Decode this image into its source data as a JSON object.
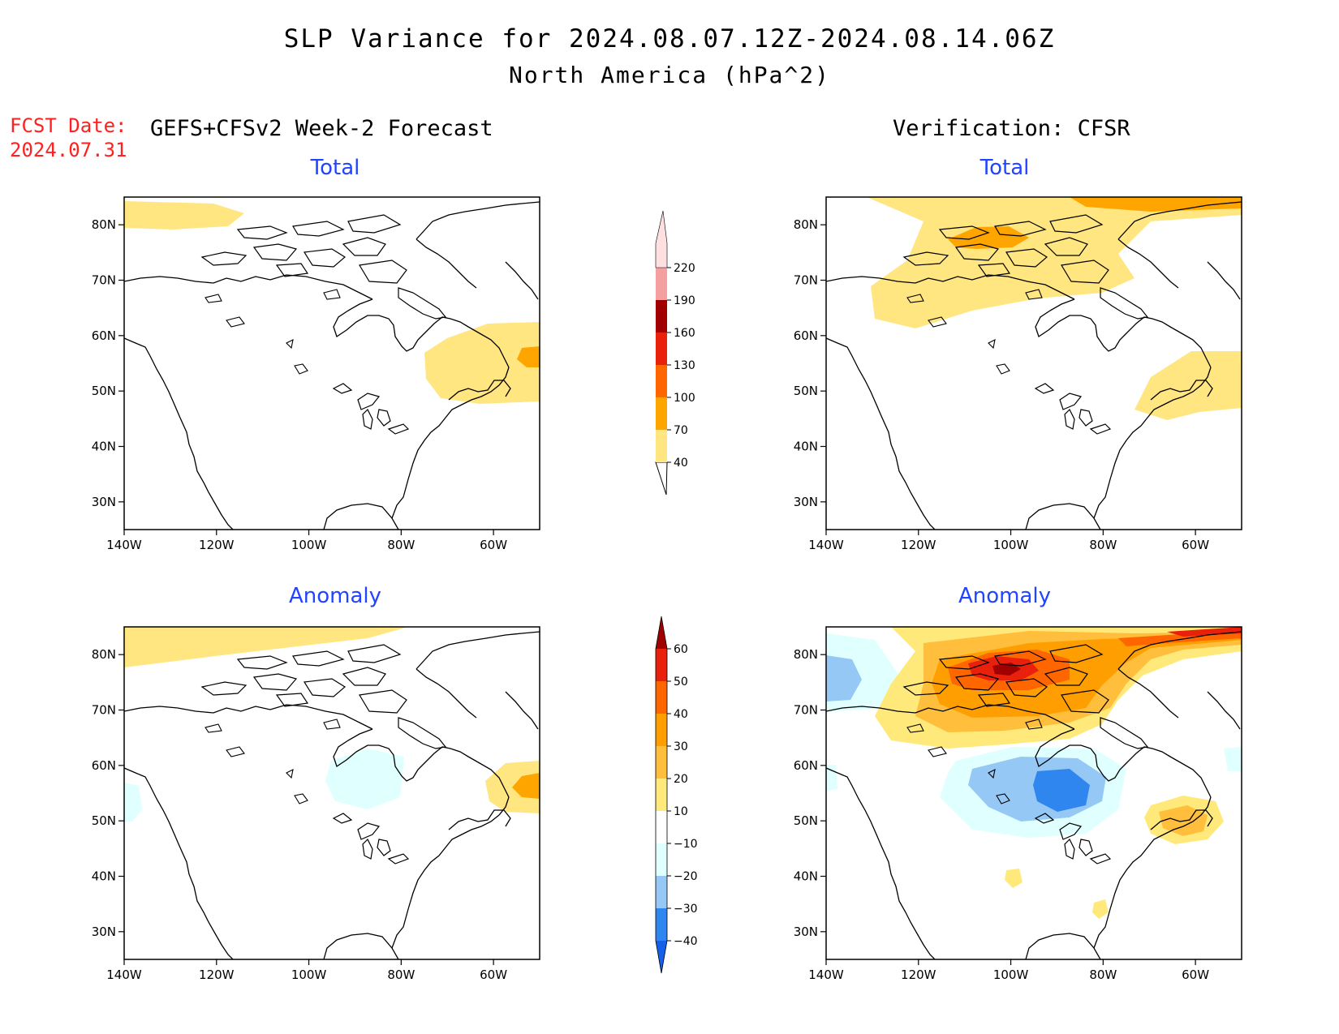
{
  "header": {
    "title": "SLP Variance for 2024.08.07.12Z-2024.08.14.06Z",
    "subtitle": "North America (hPa^2)",
    "fcst_date_label": "FCST Date:",
    "fcst_date": "2024.07.31",
    "model_label": "GEFS+CFSv2 Week-2 Forecast",
    "verification_label": "Verification: CFSR"
  },
  "panels": {
    "fcst_total": {
      "title": "Total"
    },
    "verif_total": {
      "title": "Total"
    },
    "fcst_anom": {
      "title": "Anomaly"
    },
    "verif_anom": {
      "title": "Anomaly"
    }
  },
  "axes": {
    "lat_ticks": [
      "80N",
      "70N",
      "60N",
      "50N",
      "40N",
      "30N"
    ],
    "lon_ticks": [
      "140W",
      "120W",
      "100W",
      "80W",
      "60W"
    ],
    "lon_range": [
      -140,
      -50
    ],
    "lat_range": [
      25,
      85
    ]
  },
  "colorbars": {
    "total": {
      "labels": [
        "40",
        "70",
        "100",
        "130",
        "160",
        "190",
        "220"
      ],
      "colors": [
        "#ffe680",
        "#ffa500",
        "#ff6600",
        "#e8200c",
        "#a00000",
        "#f4a0a0",
        "#ffe0e0"
      ]
    },
    "anomaly": {
      "labels": [
        "−40",
        "−30",
        "−20",
        "−10",
        "10",
        "20",
        "30",
        "40",
        "50",
        "60"
      ],
      "colors": [
        "#1460e8",
        "#2e86ee",
        "#96c8f6",
        "#e0ffff",
        "#ffffff",
        "#ffe97a",
        "#ffbe3c",
        "#ff9e00",
        "#ff6600",
        "#e8200c",
        "#a00000"
      ]
    }
  },
  "colors": {
    "title_red": "#ff2020",
    "panel_title_blue": "#2244ff"
  }
}
